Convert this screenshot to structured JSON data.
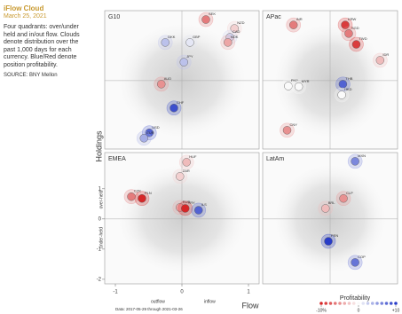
{
  "sidebar": {
    "title": "iFlow Cloud",
    "date": "March 25, 2021",
    "description": "Four quadrants: over/under held and in/out flow. Clouds denote distribution over the past 1,000 days for each currency. Blue/Red denote position profitability.",
    "source": "SOURCE: BNY Mellon"
  },
  "shared": {
    "x_label": "Flow",
    "y_label": "Holdings",
    "x_side_labels": [
      "outflow",
      "inflow"
    ],
    "y_side_labels": [
      "over-held",
      "under-held"
    ],
    "date_note": "Data: 2017-05-29 through 2021-03-26",
    "profitability": {
      "title": "Profitability",
      "lim": [
        -10,
        10
      ],
      "ticks": [
        {
          "value": -10,
          "label": "-10%"
        },
        0,
        {
          "value": 10,
          "label": "+10"
        }
      ]
    }
  },
  "chart_data": [
    {
      "type": "scatter",
      "title": "G10",
      "xlim": [
        -1.16,
        1.16
      ],
      "ylim": [
        -2.15,
        2.2
      ],
      "labels": [
        "SEK",
        "NZD",
        "CAD",
        "NOK",
        "DKK",
        "GBP",
        "JPY",
        "AUD",
        "CHF",
        "USD",
        "EUR"
      ],
      "x": [
        0.36,
        0.79,
        0.72,
        0.69,
        -0.25,
        0.12,
        0.03,
        -0.31,
        -0.12,
        -0.49,
        -0.57
      ],
      "values": [
        1.92,
        1.64,
        1.36,
        1.2,
        1.2,
        1.2,
        0.58,
        -0.11,
        -0.86,
        -1.64,
        -1.81
      ],
      "profitability": [
        -6,
        -2,
        2,
        -4,
        3,
        1,
        3,
        -5,
        9,
        8,
        4
      ]
    },
    {
      "type": "scatter",
      "title": "APac",
      "xlim": [
        -1.16,
        1.16
      ],
      "ylim": [
        -2.15,
        2.2
      ],
      "labels": [
        "INR",
        "KRW",
        "SGD",
        "TWD",
        "IDR",
        "PHP",
        "MYR",
        "THB",
        "HKD",
        "CNY"
      ],
      "x": [
        -0.63,
        0.26,
        0.32,
        0.45,
        0.86,
        -0.72,
        -0.54,
        0.22,
        0.2,
        -0.74
      ],
      "values": [
        1.75,
        1.75,
        1.48,
        1.14,
        0.64,
        -0.17,
        -0.19,
        -0.11,
        -0.45,
        -1.56
      ],
      "profitability": [
        -6,
        -9,
        -6,
        -9,
        -3,
        0,
        0,
        8,
        0,
        -5
      ]
    },
    {
      "type": "scatter",
      "title": "EMEA",
      "xlim": [
        -1.16,
        1.16
      ],
      "ylim": [
        -2.15,
        2.2
      ],
      "xticks": [
        -1,
        0,
        1
      ],
      "yticks": [
        1,
        0,
        -1,
        -2
      ],
      "labels": [
        "HUF",
        "ZAR",
        "CZK",
        "PLN",
        "RUB",
        "TRY",
        "ILS"
      ],
      "x": [
        0.07,
        -0.03,
        -0.76,
        -0.6,
        -0.03,
        0.05,
        0.25
      ],
      "values": [
        1.88,
        1.41,
        0.74,
        0.68,
        0.38,
        0.35,
        0.29
      ],
      "profitability": [
        -3,
        -2,
        -6,
        -10,
        -4,
        -10,
        8
      ]
    },
    {
      "type": "scatter",
      "title": "LatAm",
      "xlim": [
        -1.16,
        1.16
      ],
      "ylim": [
        -2.15,
        2.2
      ],
      "labels": [
        "MXN",
        "CLP",
        "BRL",
        "PEN",
        "COP"
      ],
      "x": [
        0.43,
        0.23,
        -0.08,
        -0.03,
        0.43
      ],
      "values": [
        1.91,
        0.68,
        0.35,
        -0.74,
        -1.44
      ],
      "profitability": [
        6,
        -5,
        -3,
        10,
        7
      ]
    }
  ]
}
